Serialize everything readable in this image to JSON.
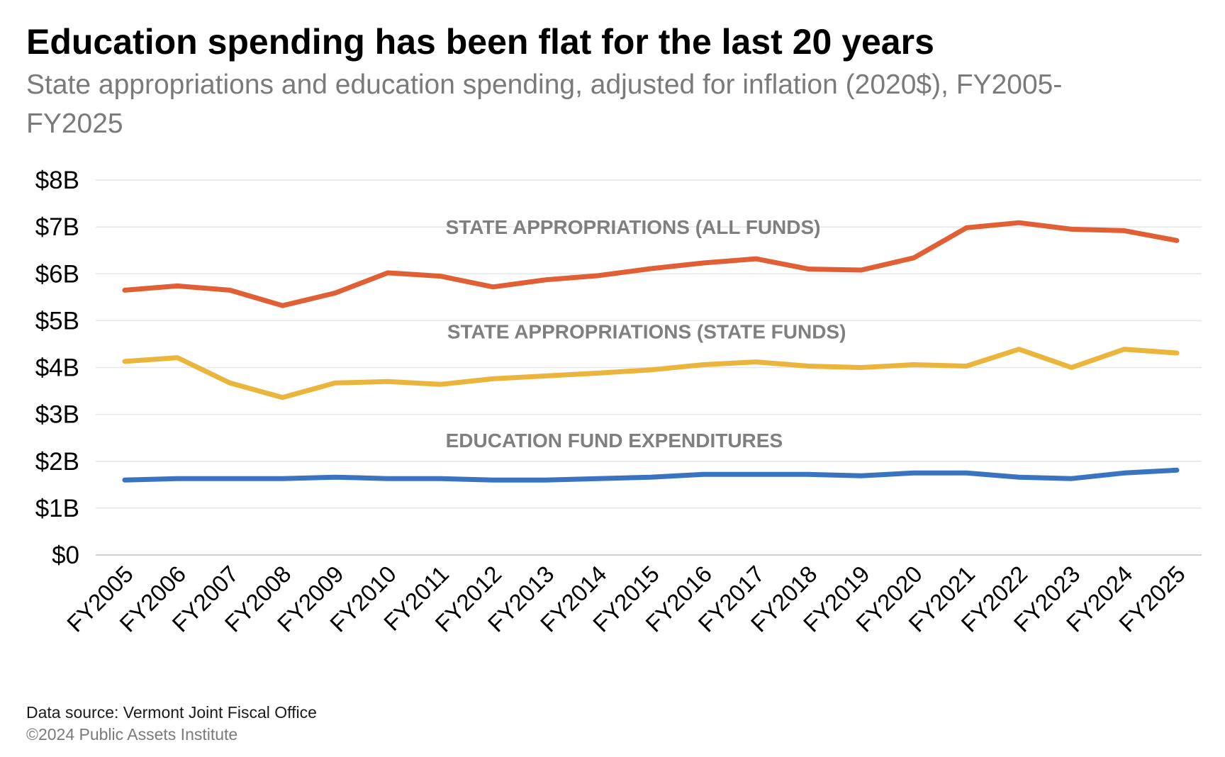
{
  "title": "Education spending has been flat for the last 20 years",
  "subtitle": "State appropriations and education spending, adjusted for inflation (2020$), FY2005-FY2025",
  "source": "Data source: Vermont Joint Fiscal Office",
  "copyright": "©2024 Public Assets Institute",
  "chart_data": {
    "type": "line",
    "title": "Education spending has been flat for the last 20 years",
    "subtitle": "State appropriations and education spending, adjusted for inflation (2020$), FY2005-FY2025",
    "xlabel": "",
    "ylabel": "",
    "categories": [
      "FY2005",
      "FY2006",
      "FY2007",
      "FY2008",
      "FY2009",
      "FY2010",
      "FY2011",
      "FY2012",
      "FY2013",
      "FY2014",
      "FY2015",
      "FY2016",
      "FY2017",
      "FY2018",
      "FY2019",
      "FY2020",
      "FY2021",
      "FY2022",
      "FY2023",
      "FY2024",
      "FY2025"
    ],
    "ylim": [
      0,
      8
    ],
    "yticks": [
      "$0",
      "$1B",
      "$2B",
      "$3B",
      "$4B",
      "$5B",
      "$6B",
      "$7B",
      "$8B"
    ],
    "grid": true,
    "legend": "inline labels",
    "series": [
      {
        "name": "STATE APPROPRIATIONS (ALL FUNDS)",
        "color": "#e15f35",
        "values": [
          5.65,
          5.74,
          5.65,
          5.32,
          5.59,
          6.02,
          5.95,
          5.72,
          5.87,
          5.96,
          6.11,
          6.23,
          6.32,
          6.1,
          6.08,
          6.34,
          6.98,
          7.09,
          6.95,
          6.92,
          6.71
        ]
      },
      {
        "name": "STATE APPROPRIATIONS (STATE FUNDS)",
        "color": "#ebb53d",
        "values": [
          4.13,
          4.21,
          3.67,
          3.36,
          3.67,
          3.7,
          3.64,
          3.76,
          3.82,
          3.88,
          3.95,
          4.06,
          4.12,
          4.03,
          4.0,
          4.06,
          4.03,
          4.39,
          4.0,
          4.39,
          4.31
        ]
      },
      {
        "name": "EDUCATION FUND EXPENDITURES",
        "color": "#3a74c0",
        "values": [
          1.6,
          1.63,
          1.63,
          1.63,
          1.66,
          1.63,
          1.63,
          1.6,
          1.6,
          1.63,
          1.66,
          1.72,
          1.72,
          1.72,
          1.69,
          1.75,
          1.75,
          1.66,
          1.63,
          1.75,
          1.81
        ]
      }
    ]
  }
}
